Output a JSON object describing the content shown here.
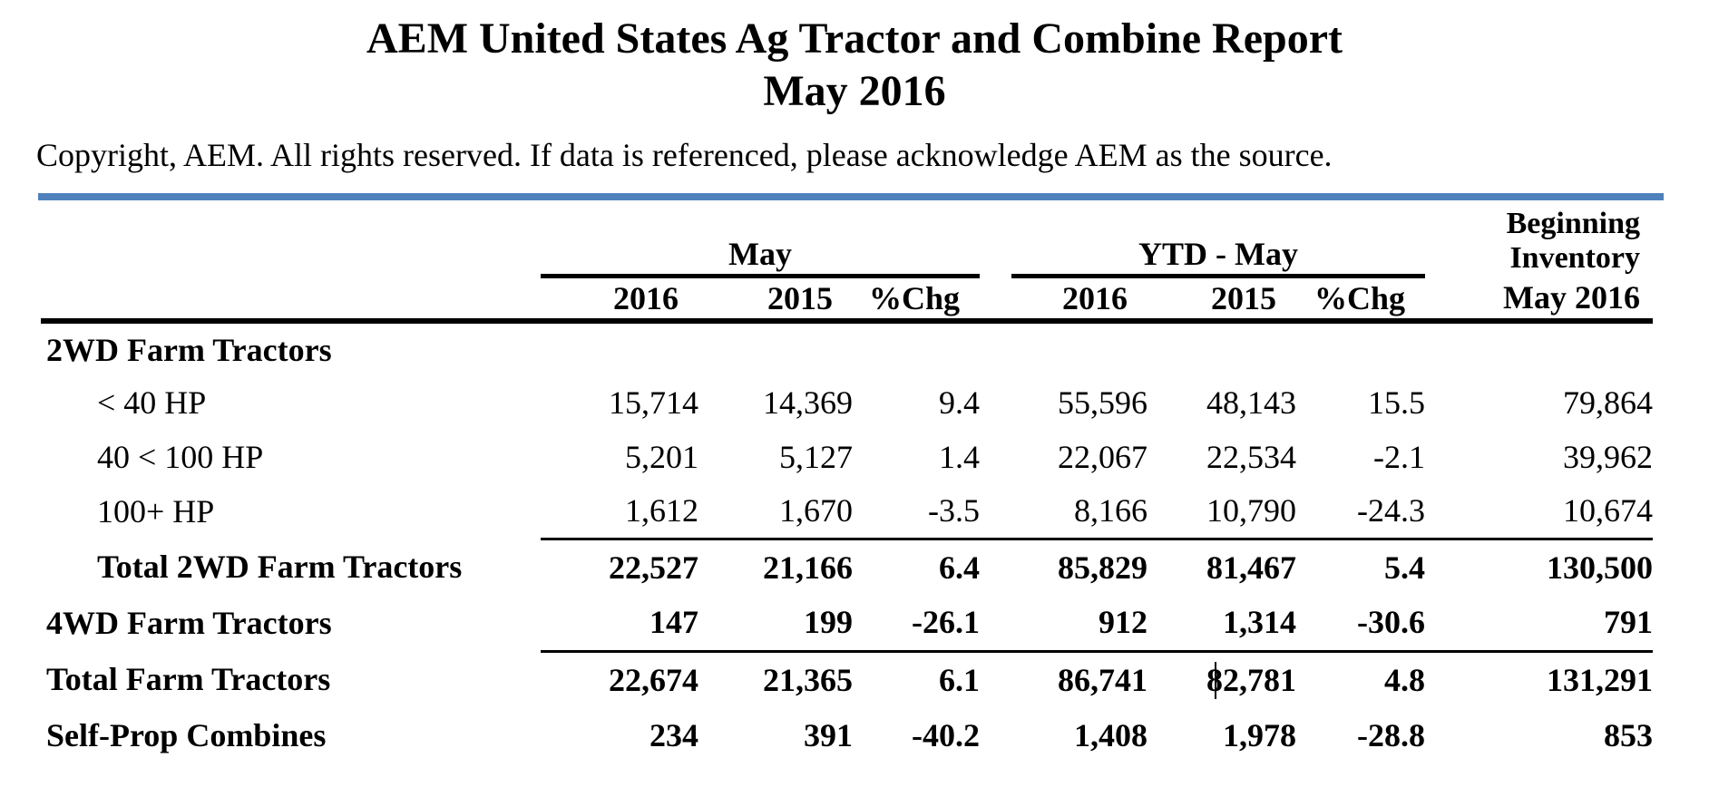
{
  "title": {
    "line1": "AEM United States Ag Tractor and Combine Report",
    "line2": "May 2016"
  },
  "copyright": "Copyright, AEM. All rights reserved. If data is referenced, please acknowledge AEM as the source.",
  "colors": {
    "accent_bar": "#4f81bd",
    "rule_lines": "#000000"
  },
  "table": {
    "group_headers": {
      "may": "May",
      "ytd": "YTD - May",
      "inventory_line1": "Beginning",
      "inventory_line2": "Inventory"
    },
    "column_headers": {
      "may_2016": "2016",
      "may_2015": "2015",
      "may_chg": "%Chg",
      "ytd_2016": "2016",
      "ytd_2015": "2015",
      "ytd_chg": "%Chg",
      "inventory": "May 2016"
    },
    "rows": [
      {
        "label": "2WD Farm Tractors",
        "may_2016": "",
        "may_2015": "",
        "may_chg": "",
        "ytd_2016": "",
        "ytd_2015": "",
        "ytd_chg": "",
        "inventory": ""
      },
      {
        "label": "< 40 HP",
        "may_2016": "15,714",
        "may_2015": "14,369",
        "may_chg": "9.4",
        "ytd_2016": "55,596",
        "ytd_2015": "48,143",
        "ytd_chg": "15.5",
        "inventory": "79,864"
      },
      {
        "label": "40 < 100 HP",
        "may_2016": "5,201",
        "may_2015": "5,127",
        "may_chg": "1.4",
        "ytd_2016": "22,067",
        "ytd_2015": "22,534",
        "ytd_chg": "-2.1",
        "inventory": "39,962"
      },
      {
        "label": "100+ HP",
        "may_2016": "1,612",
        "may_2015": "1,670",
        "may_chg": "-3.5",
        "ytd_2016": "8,166",
        "ytd_2015": "10,790",
        "ytd_chg": "-24.3",
        "inventory": "10,674"
      },
      {
        "label": "Total 2WD Farm Tractors",
        "may_2016": "22,527",
        "may_2015": "21,166",
        "may_chg": "6.4",
        "ytd_2016": "85,829",
        "ytd_2015": "81,467",
        "ytd_chg": "5.4",
        "inventory": "130,500"
      },
      {
        "label": "4WD Farm Tractors",
        "may_2016": "147",
        "may_2015": "199",
        "may_chg": "-26.1",
        "ytd_2016": "912",
        "ytd_2015": "1,314",
        "ytd_chg": "-30.6",
        "inventory": "791"
      },
      {
        "label": "Total Farm Tractors",
        "may_2016": "22,674",
        "may_2015": "21,365",
        "may_chg": "6.1",
        "ytd_2016": "86,741",
        "ytd_2015": "82,781",
        "ytd_chg": "4.8",
        "inventory": "131,291"
      },
      {
        "label": "Self-Prop Combines",
        "may_2016": "234",
        "may_2015": "391",
        "may_chg": "-40.2",
        "ytd_2016": "1,408",
        "ytd_2015": "1,978",
        "ytd_chg": "-28.8",
        "inventory": "853"
      }
    ]
  }
}
